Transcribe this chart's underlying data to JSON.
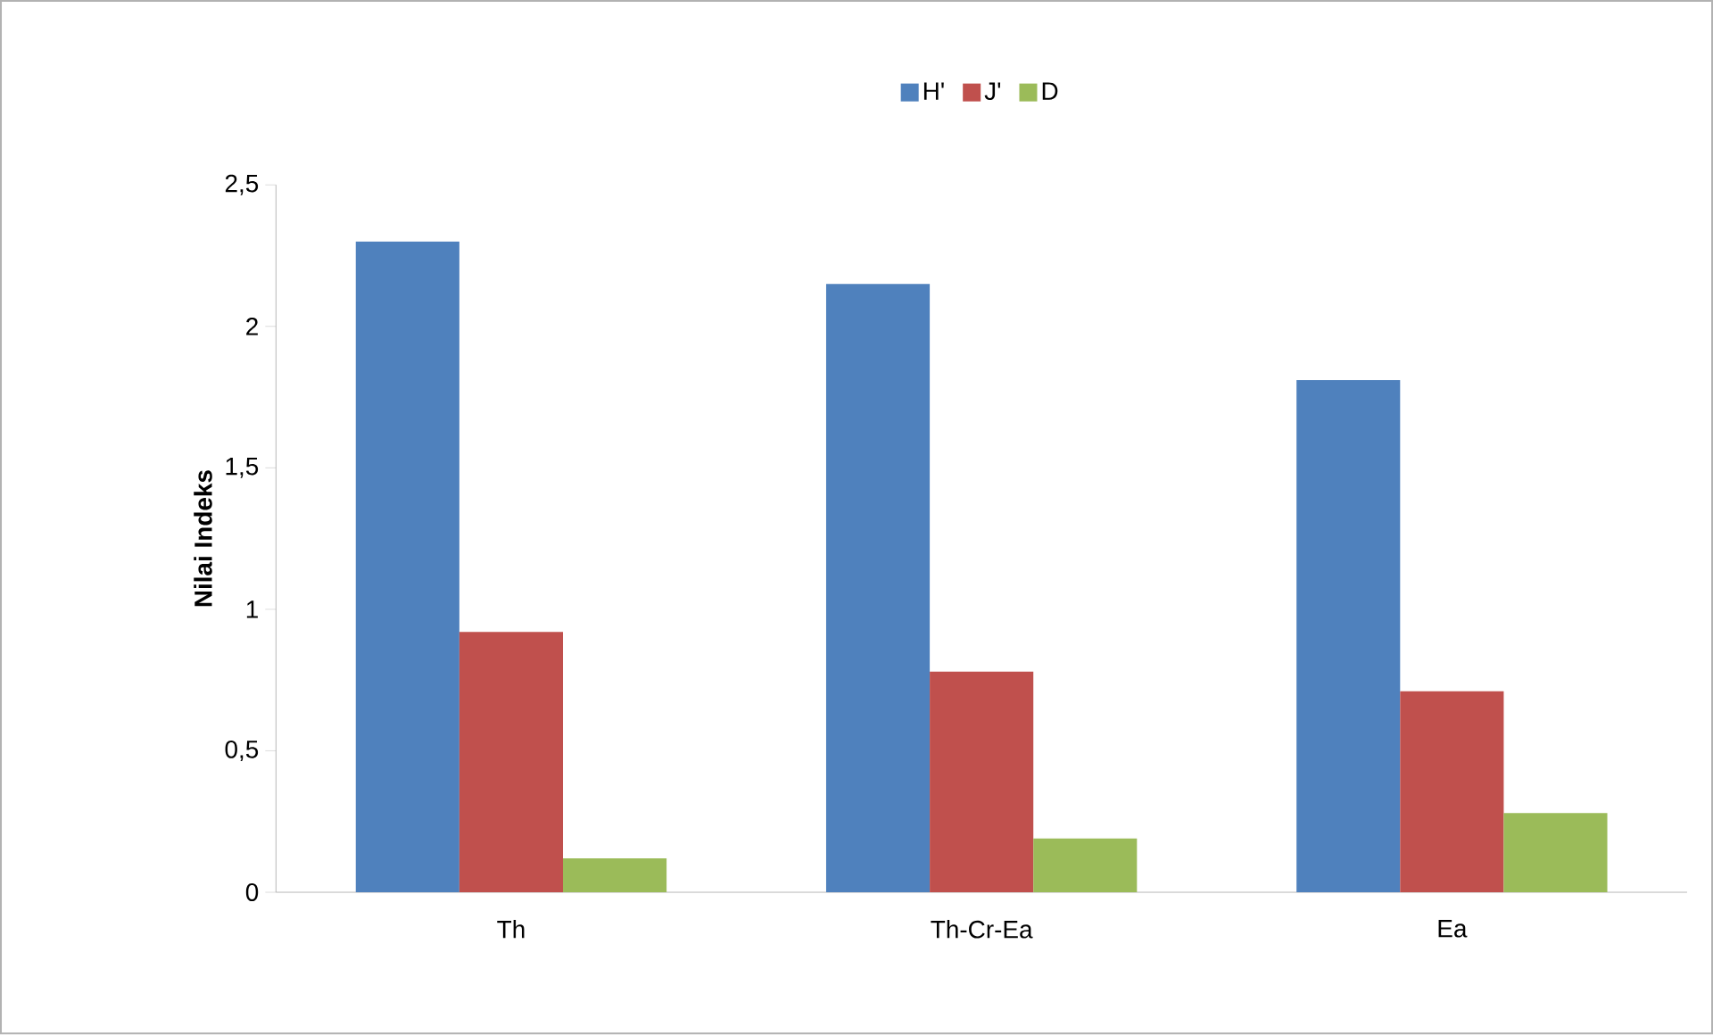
{
  "chart_data": {
    "type": "bar",
    "ylabel": "Nilai Indeks",
    "categories": [
      "Th",
      "Th-Cr-Ea",
      "Ea"
    ],
    "series": [
      {
        "name": "H'",
        "color": "#4f81bd",
        "values": [
          2.3,
          2.15,
          1.81
        ]
      },
      {
        "name": "J'",
        "color": "#c0504d",
        "values": [
          0.92,
          0.78,
          0.71
        ]
      },
      {
        "name": "D",
        "color": "#9bbb59",
        "values": [
          0.12,
          0.19,
          0.28
        ]
      }
    ],
    "ylim": [
      0,
      2.5
    ],
    "yticks": [
      0,
      {
        "value": 0.5,
        "label": "0,5"
      },
      1,
      {
        "value": 1.5,
        "label": "1,5"
      },
      2,
      {
        "value": 2.5,
        "label": "2,5"
      }
    ],
    "legend": "top",
    "grid": false
  }
}
